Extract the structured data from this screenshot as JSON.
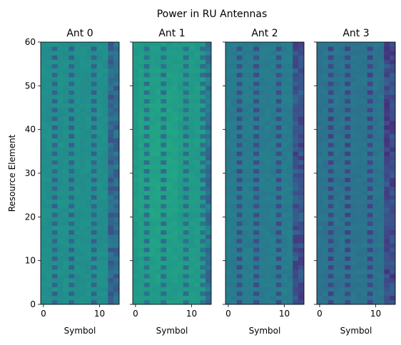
{
  "chart_data": {
    "type": "heatmap",
    "title": "Power in RU Antennas",
    "ylabel": "Resource Element",
    "xlabel": "Symbol",
    "xlim": [
      -0.5,
      13.5
    ],
    "ylim": [
      0,
      60
    ],
    "xticks": [
      0,
      10
    ],
    "yticks": [
      0,
      10,
      20,
      30,
      40,
      50,
      60
    ],
    "n_symbols": 14,
    "n_resource_elements": 60,
    "pilot_symbols": [
      2,
      5,
      9,
      12
    ],
    "subplots": [
      {
        "title": "Ant 0",
        "base_level": 0.62,
        "dark_symbols": [
          12,
          13
        ]
      },
      {
        "title": "Ant 1",
        "base_level": 0.68,
        "dark_symbols": [
          13
        ]
      },
      {
        "title": "Ant 2",
        "base_level": 0.52,
        "dark_symbols": [
          12,
          13
        ]
      },
      {
        "title": "Ant 3",
        "base_level": 0.48,
        "dark_symbols": [
          12,
          13
        ]
      }
    ]
  }
}
